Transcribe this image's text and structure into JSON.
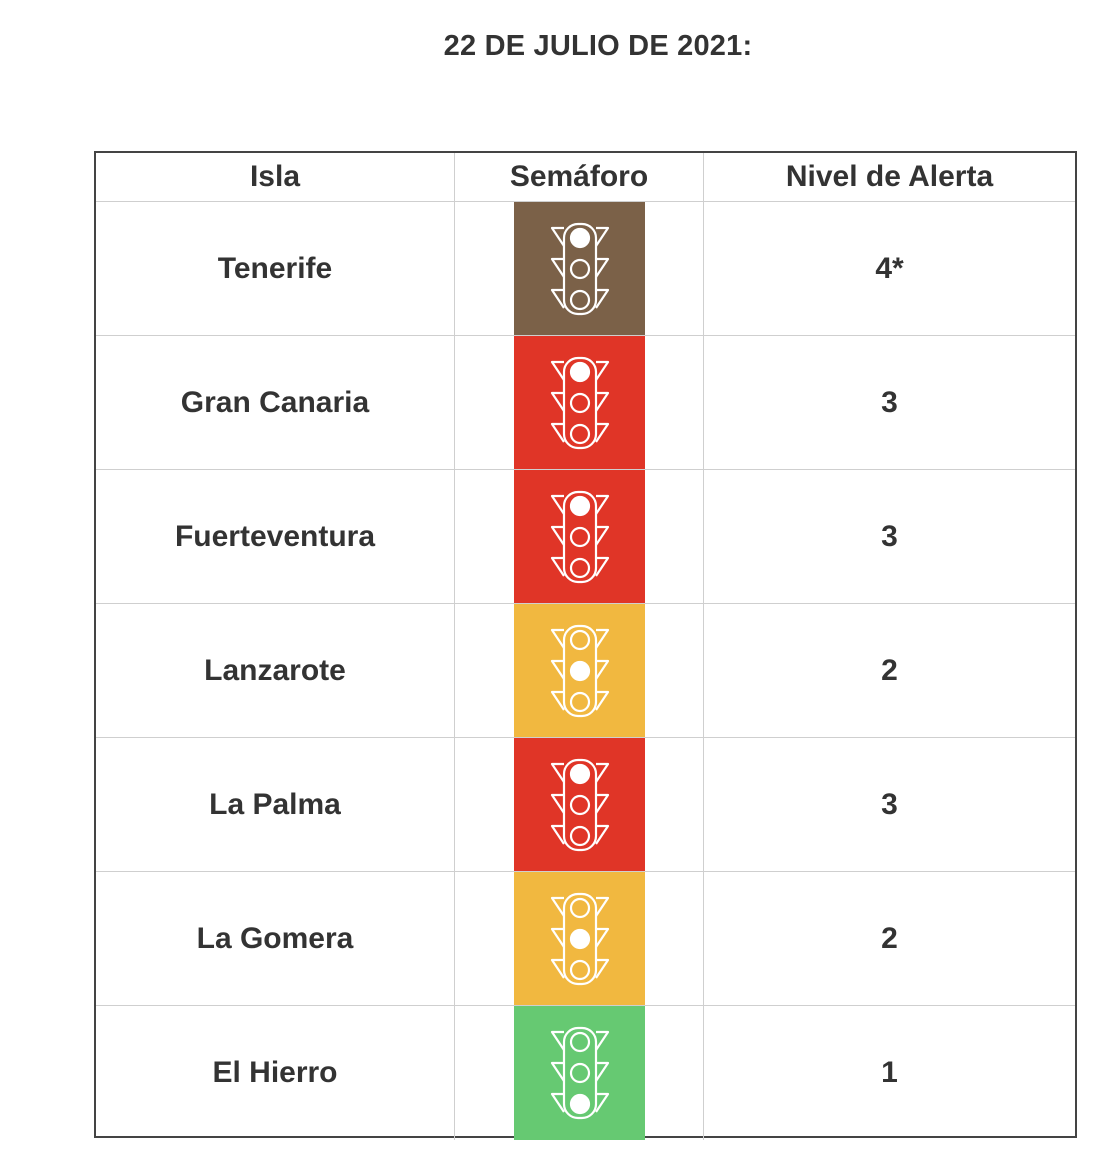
{
  "title": "22 DE JULIO DE 2021:",
  "headers": {
    "isla": "Isla",
    "semaforo": "Semáforo",
    "nivel": "Nivel de Alerta"
  },
  "rows": [
    {
      "isla": "Tenerife",
      "nivel": "4*",
      "color": "#7b6148",
      "active_light": "top"
    },
    {
      "isla": "Gran Canaria",
      "nivel": "3",
      "color": "#e03527",
      "active_light": "top"
    },
    {
      "isla": "Fuerteventura",
      "nivel": "3",
      "color": "#e03527",
      "active_light": "top"
    },
    {
      "isla": "Lanzarote",
      "nivel": "2",
      "color": "#f1b840",
      "active_light": "middle"
    },
    {
      "isla": "La Palma",
      "nivel": "3",
      "color": "#e03527",
      "active_light": "top"
    },
    {
      "isla": "La Gomera",
      "nivel": "2",
      "color": "#f1b840",
      "active_light": "middle"
    },
    {
      "isla": "El Hierro",
      "nivel": "1",
      "color": "#66c972",
      "active_light": "bottom"
    }
  ]
}
